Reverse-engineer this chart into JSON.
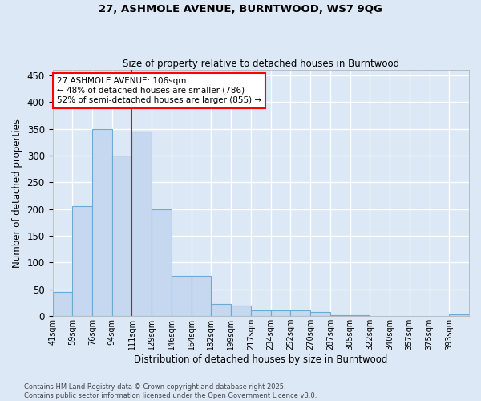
{
  "title_line1": "27, ASHMOLE AVENUE, BURNTWOOD, WS7 9QG",
  "title_line2": "Size of property relative to detached houses in Burntwood",
  "xlabel": "Distribution of detached houses by size in Burntwood",
  "ylabel": "Number of detached properties",
  "bin_labels": [
    "41sqm",
    "59sqm",
    "76sqm",
    "94sqm",
    "111sqm",
    "129sqm",
    "146sqm",
    "164sqm",
    "182sqm",
    "199sqm",
    "217sqm",
    "234sqm",
    "252sqm",
    "270sqm",
    "287sqm",
    "305sqm",
    "322sqm",
    "340sqm",
    "357sqm",
    "375sqm",
    "393sqm"
  ],
  "bar_heights": [
    45,
    205,
    350,
    300,
    345,
    200,
    75,
    75,
    22,
    20,
    10,
    10,
    10,
    8,
    2,
    2,
    0,
    0,
    0,
    0,
    3
  ],
  "bar_color": "#c5d8f0",
  "bar_edge_color": "#6aaad4",
  "property_line_index": 4,
  "red_line_color": "red",
  "annotation_text_line1": "27 ASHMOLE AVENUE: 106sqm",
  "annotation_text_line2": "← 48% of detached houses are smaller (786)",
  "annotation_text_line3": "52% of semi-detached houses are larger (855) →",
  "annotation_box_color": "white",
  "annotation_box_edge_color": "red",
  "ylim": [
    0,
    460
  ],
  "background_color": "#dce8f5",
  "grid_color": "white",
  "footer_line1": "Contains HM Land Registry data © Crown copyright and database right 2025.",
  "footer_line2": "Contains public sector information licensed under the Open Government Licence v3.0."
}
